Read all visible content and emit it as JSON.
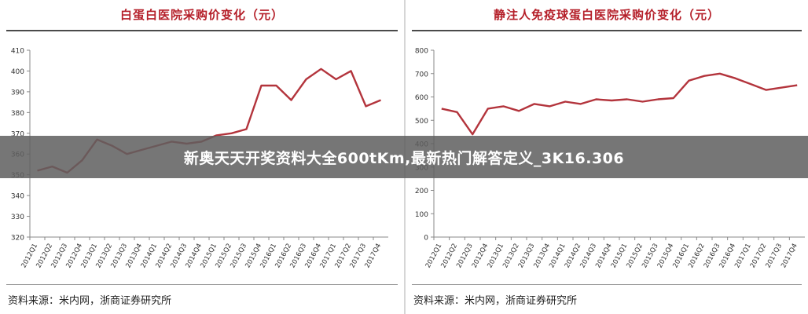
{
  "banner": {
    "text": "新奥天天开奖资料大全600tKm,最新热门解答定义_3K16.306"
  },
  "line_color": "#b3343c",
  "chart_data": [
    {
      "type": "line",
      "title": "白蛋白医院采购价变化（元）",
      "source": "资料来源：米内网，浙商证券研究所",
      "categories": [
        "2012Q1",
        "2012Q2",
        "2012Q3",
        "2012Q4",
        "2013Q1",
        "2013Q2",
        "2013Q3",
        "2013Q4",
        "2014Q1",
        "2014Q2",
        "2014Q3",
        "2014Q4",
        "2015Q1",
        "2015Q2",
        "2015Q3",
        "2015Q4",
        "2016Q1",
        "2016Q2",
        "2016Q3",
        "2016Q4",
        "2017Q1",
        "2017Q2",
        "2017Q3",
        "2017Q4"
      ],
      "values": [
        352,
        354,
        351,
        357,
        367,
        364,
        360,
        362,
        364,
        366,
        365,
        366,
        369,
        370,
        372,
        393,
        393,
        386,
        396,
        401,
        396,
        400,
        383,
        386
      ],
      "ylim": [
        320,
        410
      ],
      "yticks": [
        320,
        330,
        340,
        350,
        360,
        370,
        380,
        390,
        400,
        410
      ],
      "xlabel": "",
      "ylabel": ""
    },
    {
      "type": "line",
      "title": "静注人免疫球蛋白医院采购价变化（元）",
      "source": "资料来源：米内网，浙商证券研究所",
      "categories": [
        "2012Q1",
        "2012Q2",
        "2012Q3",
        "2012Q4",
        "2013Q1",
        "2013Q2",
        "2013Q3",
        "2013Q4",
        "2014Q1",
        "2014Q2",
        "2014Q3",
        "2014Q4",
        "2015Q1",
        "2015Q2",
        "2015Q3",
        "2015Q4",
        "2016Q1",
        "2016Q2",
        "2016Q3",
        "2016Q4",
        "2017Q1",
        "2017Q2",
        "2017Q3",
        "2017Q4"
      ],
      "values": [
        550,
        535,
        440,
        550,
        560,
        540,
        570,
        560,
        580,
        570,
        590,
        585,
        590,
        580,
        590,
        595,
        670,
        690,
        700,
        680,
        655,
        630,
        640,
        650
      ],
      "ylim": [
        0,
        800
      ],
      "yticks": [
        0,
        100,
        200,
        300,
        400,
        500,
        600,
        700,
        800
      ],
      "xlabel": "",
      "ylabel": ""
    }
  ]
}
